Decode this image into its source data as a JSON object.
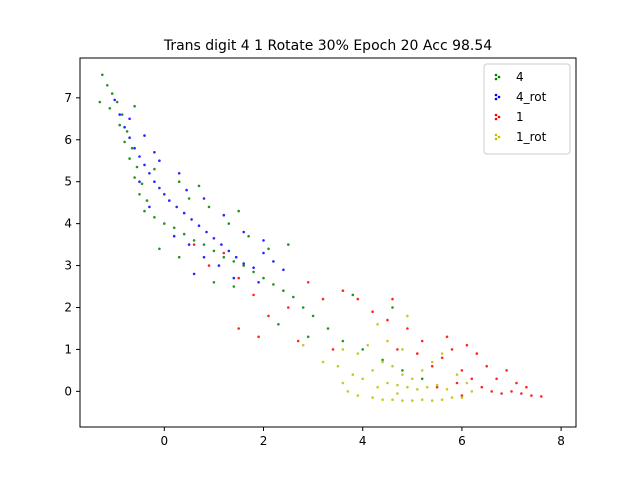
{
  "chart_data": {
    "type": "scatter",
    "title": "Trans digit 4 1 Rotate 30% Epoch 20 Acc 98.54",
    "xlabel": "",
    "ylabel": "",
    "xlim": [
      -1.7,
      8.3
    ],
    "ylim": [
      -0.85,
      7.95
    ],
    "x_ticks": [
      0,
      2,
      4,
      6,
      8
    ],
    "y_ticks": [
      0,
      1,
      2,
      3,
      4,
      5,
      6,
      7
    ],
    "x_tick_labels": [
      "0",
      "2",
      "4",
      "6",
      "8"
    ],
    "y_tick_labels": [
      "0",
      "1",
      "2",
      "3",
      "4",
      "5",
      "6",
      "7"
    ],
    "grid": false,
    "legend_position": "top-right",
    "series": [
      {
        "name": "4",
        "color": "#008000",
        "points": [
          [
            -1.25,
            7.55
          ],
          [
            -1.15,
            7.3
          ],
          [
            -1.05,
            7.1
          ],
          [
            -0.95,
            6.9
          ],
          [
            -1.1,
            6.75
          ],
          [
            -0.85,
            6.6
          ],
          [
            -0.9,
            6.35
          ],
          [
            -0.75,
            6.2
          ],
          [
            -0.8,
            5.95
          ],
          [
            -0.65,
            5.8
          ],
          [
            -0.7,
            5.55
          ],
          [
            -0.55,
            5.35
          ],
          [
            -0.6,
            5.1
          ],
          [
            -0.45,
            4.95
          ],
          [
            -0.5,
            4.7
          ],
          [
            -0.35,
            4.55
          ],
          [
            -0.4,
            4.3
          ],
          [
            -0.2,
            4.15
          ],
          [
            0.0,
            4.0
          ],
          [
            0.2,
            3.9
          ],
          [
            0.4,
            3.75
          ],
          [
            0.6,
            3.6
          ],
          [
            0.8,
            3.5
          ],
          [
            1.0,
            3.35
          ],
          [
            1.2,
            3.2
          ],
          [
            1.4,
            3.1
          ],
          [
            1.6,
            3.0
          ],
          [
            1.8,
            2.85
          ],
          [
            2.0,
            2.7
          ],
          [
            2.2,
            2.55
          ],
          [
            2.4,
            2.4
          ],
          [
            2.6,
            2.25
          ],
          [
            2.8,
            2.0
          ],
          [
            3.0,
            1.8
          ],
          [
            3.3,
            1.5
          ],
          [
            3.6,
            1.2
          ],
          [
            4.0,
            1.0
          ],
          [
            4.4,
            0.75
          ],
          [
            4.8,
            0.5
          ],
          [
            5.2,
            0.3
          ],
          [
            0.5,
            4.6
          ],
          [
            0.9,
            4.4
          ],
          [
            1.3,
            4.0
          ],
          [
            1.7,
            3.7
          ],
          [
            2.1,
            3.4
          ],
          [
            2.5,
            3.5
          ],
          [
            -0.2,
            5.3
          ],
          [
            0.3,
            5.0
          ],
          [
            0.7,
            4.9
          ],
          [
            1.5,
            4.3
          ],
          [
            1.0,
            2.6
          ],
          [
            1.4,
            2.5
          ],
          [
            0.3,
            3.2
          ],
          [
            -0.1,
            3.4
          ],
          [
            2.3,
            1.6
          ],
          [
            2.9,
            1.3
          ],
          [
            3.8,
            2.3
          ],
          [
            4.6,
            2.0
          ],
          [
            -1.3,
            6.9
          ],
          [
            -0.6,
            6.8
          ]
        ]
      },
      {
        "name": "4_rot",
        "color": "#0000ff",
        "points": [
          [
            -1.0,
            6.95
          ],
          [
            -0.9,
            6.6
          ],
          [
            -0.8,
            6.3
          ],
          [
            -0.7,
            6.05
          ],
          [
            -0.6,
            5.8
          ],
          [
            -0.5,
            5.6
          ],
          [
            -0.4,
            5.4
          ],
          [
            -0.3,
            5.2
          ],
          [
            -0.2,
            5.0
          ],
          [
            -0.1,
            4.85
          ],
          [
            0.0,
            4.7
          ],
          [
            0.1,
            4.55
          ],
          [
            0.25,
            4.4
          ],
          [
            0.4,
            4.25
          ],
          [
            0.55,
            4.1
          ],
          [
            0.7,
            3.95
          ],
          [
            0.85,
            3.8
          ],
          [
            1.0,
            3.65
          ],
          [
            1.15,
            3.5
          ],
          [
            1.3,
            3.35
          ],
          [
            1.45,
            3.2
          ],
          [
            1.6,
            3.05
          ],
          [
            1.8,
            2.95
          ],
          [
            2.0,
            3.3
          ],
          [
            2.2,
            3.1
          ],
          [
            2.4,
            2.9
          ],
          [
            0.2,
            3.7
          ],
          [
            0.5,
            3.5
          ],
          [
            0.8,
            3.2
          ],
          [
            1.1,
            3.0
          ],
          [
            -0.3,
            4.4
          ],
          [
            -0.5,
            5.0
          ],
          [
            -0.2,
            5.7
          ],
          [
            0.3,
            5.2
          ],
          [
            0.8,
            4.6
          ],
          [
            1.2,
            4.2
          ],
          [
            1.6,
            3.8
          ],
          [
            2.0,
            3.6
          ],
          [
            0.6,
            2.8
          ],
          [
            1.4,
            2.7
          ],
          [
            -0.7,
            6.5
          ],
          [
            -0.4,
            6.1
          ],
          [
            -0.1,
            5.5
          ],
          [
            0.45,
            4.8
          ],
          [
            1.9,
            2.6
          ]
        ]
      },
      {
        "name": "1",
        "color": "#ff0000",
        "points": [
          [
            6.0,
            0.5
          ],
          [
            6.2,
            0.3
          ],
          [
            6.4,
            0.1
          ],
          [
            6.6,
            0.0
          ],
          [
            6.8,
            -0.05
          ],
          [
            7.0,
            0.0
          ],
          [
            7.2,
            -0.05
          ],
          [
            7.4,
            -0.1
          ],
          [
            7.6,
            -0.12
          ],
          [
            6.5,
            0.6
          ],
          [
            6.3,
            0.9
          ],
          [
            6.1,
            1.1
          ],
          [
            5.8,
            1.0
          ],
          [
            5.6,
            0.8
          ],
          [
            5.4,
            0.6
          ],
          [
            5.9,
            0.2
          ],
          [
            6.7,
            0.3
          ],
          [
            7.1,
            0.2
          ],
          [
            5.7,
            1.3
          ],
          [
            5.2,
            1.2
          ],
          [
            4.9,
            1.5
          ],
          [
            4.5,
            1.7
          ],
          [
            4.2,
            1.9
          ],
          [
            3.9,
            2.2
          ],
          [
            3.6,
            2.4
          ],
          [
            3.2,
            2.2
          ],
          [
            2.9,
            2.6
          ],
          [
            2.5,
            2.0
          ],
          [
            2.1,
            1.8
          ],
          [
            1.8,
            2.3
          ],
          [
            1.5,
            2.7
          ],
          [
            1.2,
            3.3
          ],
          [
            0.9,
            3.0
          ],
          [
            0.6,
            3.5
          ],
          [
            4.7,
            1.0
          ],
          [
            5.1,
            0.9
          ],
          [
            6.9,
            0.5
          ],
          [
            7.3,
            0.1
          ],
          [
            6.0,
            -0.1
          ],
          [
            5.5,
            0.1
          ],
          [
            4.6,
            2.2
          ],
          [
            3.4,
            1.0
          ],
          [
            2.7,
            1.2
          ],
          [
            1.9,
            1.3
          ],
          [
            1.5,
            1.5
          ]
        ]
      },
      {
        "name": "1_rot",
        "color": "#bfbf00",
        "points": [
          [
            4.2,
            -0.15
          ],
          [
            4.4,
            -0.2
          ],
          [
            4.6,
            -0.2
          ],
          [
            4.8,
            -0.22
          ],
          [
            5.0,
            -0.22
          ],
          [
            5.2,
            -0.2
          ],
          [
            5.4,
            -0.22
          ],
          [
            5.6,
            -0.2
          ],
          [
            5.8,
            -0.15
          ],
          [
            6.0,
            -0.15
          ],
          [
            4.3,
            0.1
          ],
          [
            4.5,
            0.2
          ],
          [
            4.7,
            0.15
          ],
          [
            4.9,
            0.1
          ],
          [
            5.1,
            0.05
          ],
          [
            5.3,
            0.1
          ],
          [
            5.5,
            0.15
          ],
          [
            5.7,
            0.05
          ],
          [
            4.0,
            0.3
          ],
          [
            4.2,
            0.5
          ],
          [
            4.4,
            0.7
          ],
          [
            4.6,
            0.6
          ],
          [
            4.8,
            0.4
          ],
          [
            5.0,
            0.3
          ],
          [
            5.2,
            0.5
          ],
          [
            3.8,
            0.4
          ],
          [
            3.6,
            0.2
          ],
          [
            3.5,
            0.6
          ],
          [
            3.9,
            0.9
          ],
          [
            4.1,
            1.1
          ],
          [
            4.5,
            1.2
          ],
          [
            4.8,
            1.0
          ],
          [
            5.4,
            0.7
          ],
          [
            5.9,
            0.4
          ],
          [
            6.2,
            0.0
          ],
          [
            3.7,
            0.0
          ],
          [
            3.9,
            -0.1
          ],
          [
            4.9,
            1.8
          ],
          [
            4.3,
            1.6
          ],
          [
            3.6,
            1.0
          ],
          [
            2.8,
            1.1
          ],
          [
            3.2,
            0.7
          ],
          [
            5.6,
            0.9
          ],
          [
            6.1,
            0.2
          ],
          [
            4.7,
            -0.05
          ]
        ]
      }
    ]
  }
}
